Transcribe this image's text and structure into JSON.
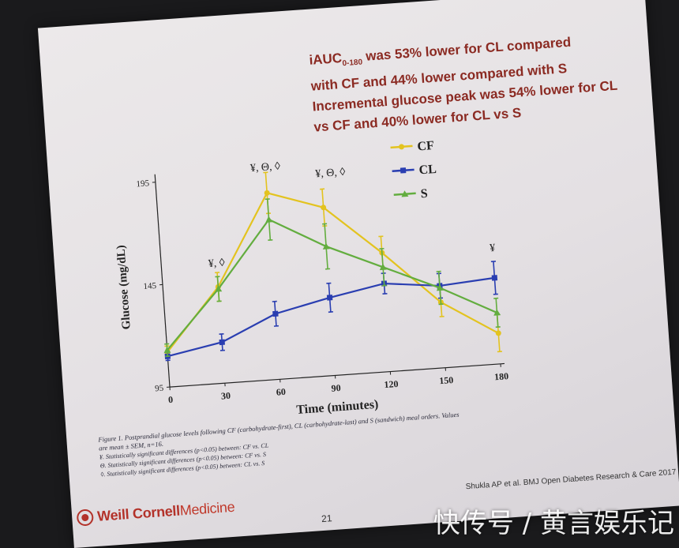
{
  "slide": {
    "summary_line1_prefix": "iAUC",
    "summary_line1_sub": "0-180",
    "summary_line1_rest": " was 53%  lower for CL compared",
    "summary_line2": "with CF and 44% lower compared with S",
    "summary_line3": "Incremental glucose peak was 54% lower for CL",
    "summary_line4": "vs CF and 40% lower for CL vs S",
    "caption": "Figure 1. Postprandial glucose levels following CF (carbohydrate-first), CL (carbohydrate-last) and S (sandwich) meal orders. Values are mean ± SEM, n=16.",
    "note1": "¥. Statistically significant differences (p<0.05) between: CF vs. CL",
    "note2": "Θ. Statistically significant differences (p<0.05) between: CF vs. S",
    "note3": "◊. Statistically significant differences (p<0.05) between: CL vs. S",
    "logo_part1": "Weill Cornell ",
    "logo_part2": "Medicine",
    "page_number": "21",
    "citation": "Shukla AP et al. BMJ Open Diabetes Research & Care 2017",
    "watermark": "快传号 / 黄言娱乐记"
  },
  "chart_data": {
    "type": "line",
    "xlabel": "Time (minutes)",
    "ylabel": "Glucose (mg/dL)",
    "x": [
      0,
      30,
      60,
      90,
      120,
      150,
      180
    ],
    "xlim": [
      0,
      180
    ],
    "ylim": [
      95,
      195
    ],
    "yticks": [
      95,
      145,
      195
    ],
    "grid": false,
    "legend_position": "top-right",
    "series": [
      {
        "name": "CF",
        "color": "#e3c31f",
        "marker": "circle",
        "values": [
          112,
          142,
          186,
          177,
          153,
          127,
          110
        ],
        "errors": [
          3,
          7,
          10,
          9,
          8,
          7,
          9
        ]
      },
      {
        "name": "CL",
        "color": "#2a3eb1",
        "marker": "square",
        "values": [
          110,
          115,
          127,
          133,
          138,
          135,
          137
        ],
        "errors": [
          2,
          4,
          6,
          7,
          5,
          6,
          8
        ]
      },
      {
        "name": "S",
        "color": "#63ad3f",
        "marker": "triangle",
        "values": [
          113,
          141,
          173,
          158,
          146,
          134,
          120
        ],
        "errors": [
          3,
          6,
          10,
          11,
          9,
          8,
          7
        ]
      }
    ],
    "annotations": [
      {
        "x": 30,
        "y": 152,
        "text": "¥, ◊"
      },
      {
        "x": 60,
        "y": 197,
        "text": "¥, Θ, ◊"
      },
      {
        "x": 95,
        "y": 192,
        "text": "¥, Θ, ◊"
      },
      {
        "x": 180,
        "y": 150,
        "text": "¥"
      }
    ]
  }
}
